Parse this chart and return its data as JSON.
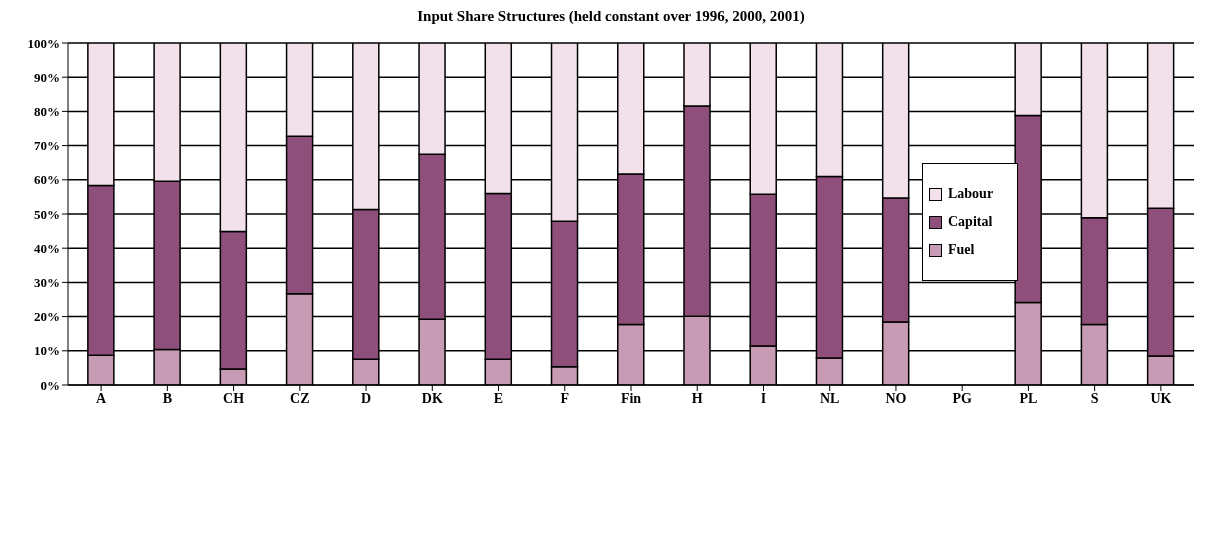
{
  "chart_data": {
    "type": "bar",
    "title": "Input Share Structures (held constant over 1996, 2000, 2001)",
    "categories": [
      "A",
      "B",
      "CH",
      "CZ",
      "D",
      "DK",
      "E",
      "F",
      "Fin",
      "H",
      "I",
      "NL",
      "NO",
      "PG",
      "PL",
      "S",
      "UK"
    ],
    "stacked": true,
    "series": [
      {
        "name": "Fuel",
        "color": "#c79bb4",
        "values": [
          8.7,
          10.4,
          4.7,
          26.7,
          7.5,
          19.2,
          7.5,
          5.3,
          17.7,
          20.1,
          11.4,
          7.9,
          18.4,
          null,
          24.1,
          17.7,
          8.5
        ]
      },
      {
        "name": "Capital",
        "color": "#8e4f7a",
        "values": [
          49.6,
          49.2,
          40.2,
          46.0,
          43.8,
          48.3,
          48.5,
          42.6,
          44.0,
          61.5,
          44.4,
          53.1,
          36.3,
          null,
          54.7,
          31.2,
          43.2
        ]
      },
      {
        "name": "Labour",
        "color": "#f2e1ea",
        "values": [
          41.7,
          40.4,
          55.1,
          27.3,
          48.7,
          32.5,
          44.0,
          52.1,
          38.3,
          18.4,
          44.2,
          39.0,
          45.3,
          null,
          21.2,
          51.1,
          48.3
        ]
      }
    ],
    "ylim": [
      0,
      100
    ],
    "yticks": [
      {
        "value": 0,
        "label": "0%"
      },
      {
        "value": 10,
        "label": "10%"
      },
      {
        "value": 20,
        "label": "20%"
      },
      {
        "value": 30,
        "label": "30%"
      },
      {
        "value": 40,
        "label": "40%"
      },
      {
        "value": 50,
        "label": "50%"
      },
      {
        "value": 60,
        "label": "60%"
      },
      {
        "value": 70,
        "label": "70%"
      },
      {
        "value": 80,
        "label": "80%"
      },
      {
        "value": 90,
        "label": "90%"
      },
      {
        "value": 100,
        "label": "100%"
      }
    ],
    "grid": "y",
    "legend": "right"
  }
}
